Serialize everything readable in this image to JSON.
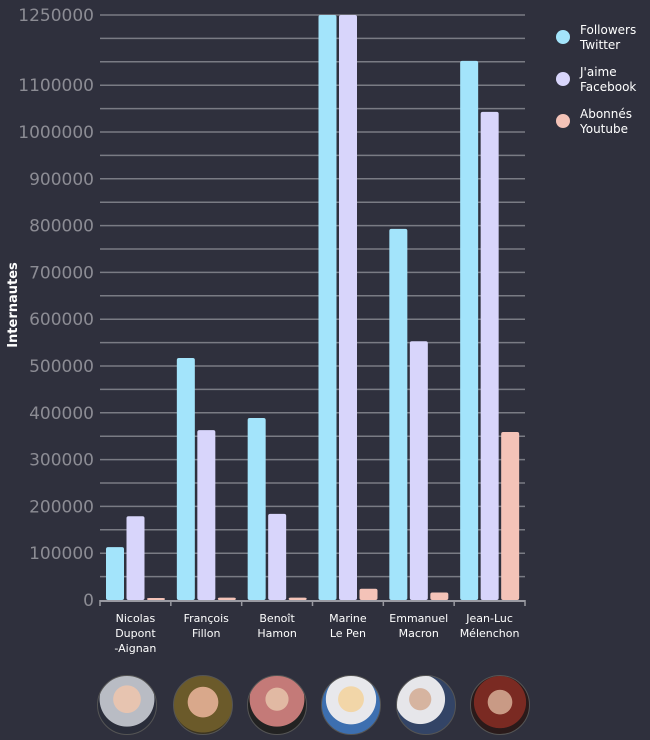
{
  "chart_data": {
    "type": "bar",
    "title": "",
    "xlabel": "",
    "ylabel": "Internautes",
    "ylim": [
      0,
      1250000
    ],
    "y_tick_labels": [
      "0",
      "100000",
      "200000",
      "300000",
      "400000",
      "500000",
      "600000",
      "700000",
      "800000",
      "900000",
      "1000000",
      "1100000",
      "1250000"
    ],
    "y_tick_values": [
      0,
      100000,
      200000,
      300000,
      400000,
      500000,
      600000,
      700000,
      800000,
      900000,
      1000000,
      1100000,
      1250000
    ],
    "grid": true,
    "grid_step": 50000,
    "legend_position": "top-right",
    "categories": [
      [
        "Nicolas",
        "Dupont",
        "-Aignan"
      ],
      [
        "François",
        "Fillon"
      ],
      [
        "Benoît",
        "Hamon"
      ],
      [
        "Marine",
        "Le Pen"
      ],
      [
        "Emmanuel",
        "Macron"
      ],
      [
        "Jean-Luc",
        "Mélenchon"
      ]
    ],
    "series": [
      {
        "name": [
          "Followers",
          "Twitter"
        ],
        "color": "#a3e4fb",
        "values": [
          113000,
          517000,
          389000,
          1250000,
          793000,
          1152000
        ]
      },
      {
        "name": [
          "J'aime",
          "Facebook"
        ],
        "color": "#d8d5fb",
        "values": [
          179000,
          363000,
          184000,
          1250000,
          553000,
          1043000
        ]
      },
      {
        "name": [
          "Abonnés",
          "Youtube"
        ],
        "color": "#f4c3b8",
        "values": [
          2000,
          5000,
          5000,
          24000,
          16000,
          359000
        ]
      }
    ]
  },
  "colors": {
    "background": "#2f303d",
    "grid": "#7a7b84",
    "tick_text": "#8c8c94"
  },
  "photos": [
    "nicolas-dupont-aignan-photo",
    "francois-fillon-photo",
    "benoit-hamon-photo",
    "marine-le-pen-photo",
    "emmanuel-macron-photo",
    "jean-luc-melenchon-photo"
  ]
}
